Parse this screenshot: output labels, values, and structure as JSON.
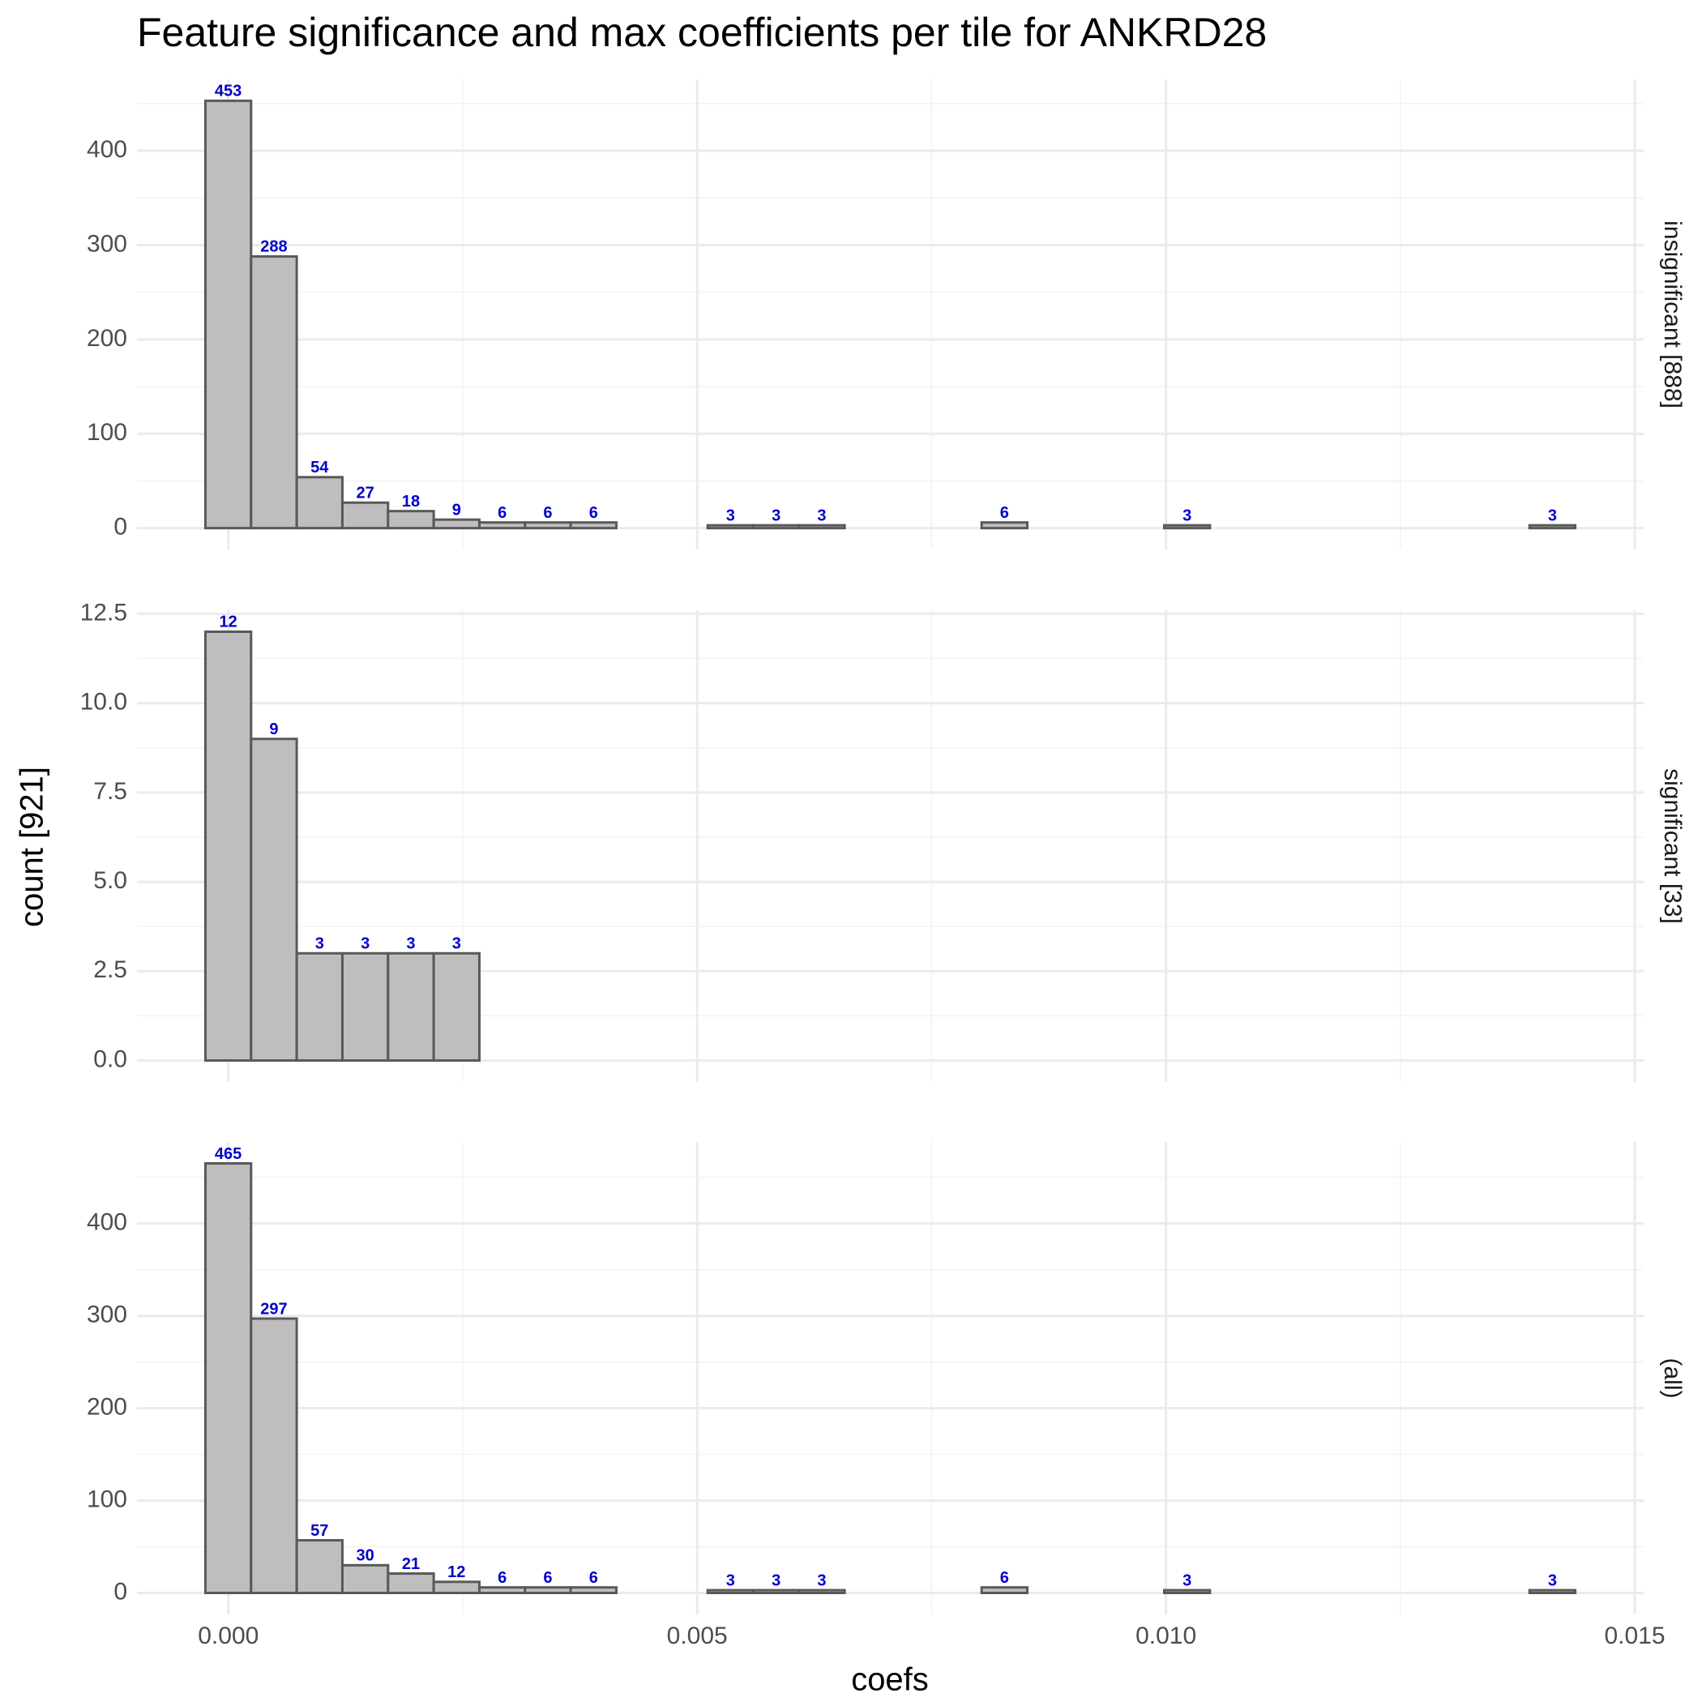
{
  "title": "Feature significance and max coefficients per tile for ANKRD28",
  "xlabel": "coefs",
  "ylabel": "count [921]",
  "chart_data": [
    {
      "type": "histogram",
      "strip": "insignificant [888]",
      "bins": [
        -0.000245,
        0.000242,
        0.000729,
        0.001216,
        0.001703,
        0.00219,
        0.002677,
        0.003164,
        0.003651,
        0.004138,
        0.004625,
        0.005112,
        0.005599,
        0.006086,
        0.006573,
        0.00706,
        0.007547,
        0.008034,
        0.008521,
        0.009008,
        0.009495,
        0.009982,
        0.010469,
        0.010956,
        0.011443,
        0.01193,
        0.012417,
        0.012904,
        0.013391,
        0.013878,
        0.014365
      ],
      "values": [
        453,
        288,
        54,
        27,
        18,
        9,
        6,
        6,
        6,
        0,
        0,
        3,
        3,
        3,
        0,
        0,
        0,
        6,
        0,
        0,
        0,
        3,
        0,
        0,
        0,
        0,
        0,
        0,
        0,
        3
      ],
      "color": "#bebebe",
      "edgecolor": "#595959",
      "label_color": "#0000cc",
      "xlim": [
        -0.000975,
        0.015095
      ],
      "xticks": [
        {
          "value": 0,
          "label": "0.000"
        },
        {
          "value": 0.005,
          "label": "0.005"
        },
        {
          "value": 0.01,
          "label": "0.010"
        },
        {
          "value": 0.015,
          "label": "0.015"
        }
      ],
      "ylim": [
        -22.65,
        475.65
      ],
      "yticks": [
        0,
        100,
        200,
        300,
        400
      ],
      "grid": true
    },
    {
      "type": "histogram",
      "strip": "significant [33]",
      "bins": [
        -0.000245,
        0.000242,
        0.000729,
        0.001216,
        0.001703,
        0.00219,
        0.002677,
        0.003164,
        0.003651,
        0.004138,
        0.004625,
        0.005112,
        0.005599,
        0.006086,
        0.006573,
        0.00706,
        0.007547,
        0.008034,
        0.008521,
        0.009008,
        0.009495,
        0.009982,
        0.010469,
        0.010956,
        0.011443,
        0.01193,
        0.012417,
        0.012904,
        0.013391,
        0.013878,
        0.014365
      ],
      "values": [
        12,
        9,
        3,
        3,
        3,
        3,
        0,
        0,
        0,
        0,
        0,
        0,
        0,
        0,
        0,
        0,
        0,
        0,
        0,
        0,
        0,
        0,
        0,
        0,
        0,
        0,
        0,
        0,
        0,
        0
      ],
      "color": "#bebebe",
      "edgecolor": "#595959",
      "label_color": "#0000cc",
      "xlim": [
        -0.000975,
        0.015095
      ],
      "xticks": [
        {
          "value": 0,
          "label": "0.000"
        },
        {
          "value": 0.005,
          "label": "0.005"
        },
        {
          "value": 0.01,
          "label": "0.010"
        },
        {
          "value": 0.015,
          "label": "0.015"
        }
      ],
      "ylim": [
        -0.6,
        12.6
      ],
      "yticks": [
        {
          "value": 0,
          "label": "0.0"
        },
        {
          "value": 2.5,
          "label": "2.5"
        },
        {
          "value": 5,
          "label": "5.0"
        },
        {
          "value": 7.5,
          "label": "7.5"
        },
        {
          "value": 10,
          "label": "10.0"
        },
        {
          "value": 12.5,
          "label": "12.5"
        }
      ],
      "grid": true
    },
    {
      "type": "histogram",
      "strip": "(all)",
      "bins": [
        -0.000245,
        0.000242,
        0.000729,
        0.001216,
        0.001703,
        0.00219,
        0.002677,
        0.003164,
        0.003651,
        0.004138,
        0.004625,
        0.005112,
        0.005599,
        0.006086,
        0.006573,
        0.00706,
        0.007547,
        0.008034,
        0.008521,
        0.009008,
        0.009495,
        0.009982,
        0.010469,
        0.010956,
        0.011443,
        0.01193,
        0.012417,
        0.012904,
        0.013391,
        0.013878,
        0.014365
      ],
      "values": [
        465,
        297,
        57,
        30,
        21,
        12,
        6,
        6,
        6,
        0,
        0,
        3,
        3,
        3,
        0,
        0,
        0,
        6,
        0,
        0,
        0,
        3,
        0,
        0,
        0,
        0,
        0,
        0,
        0,
        3
      ],
      "color": "#bebebe",
      "edgecolor": "#595959",
      "label_color": "#0000cc",
      "xlim": [
        -0.000975,
        0.015095
      ],
      "xticks": [
        {
          "value": 0,
          "label": "0.000"
        },
        {
          "value": 0.005,
          "label": "0.005"
        },
        {
          "value": 0.01,
          "label": "0.010"
        },
        {
          "value": 0.015,
          "label": "0.015"
        }
      ],
      "ylim": [
        -23.25,
        488.25
      ],
      "yticks": [
        0,
        100,
        200,
        300,
        400
      ],
      "grid": true
    }
  ]
}
